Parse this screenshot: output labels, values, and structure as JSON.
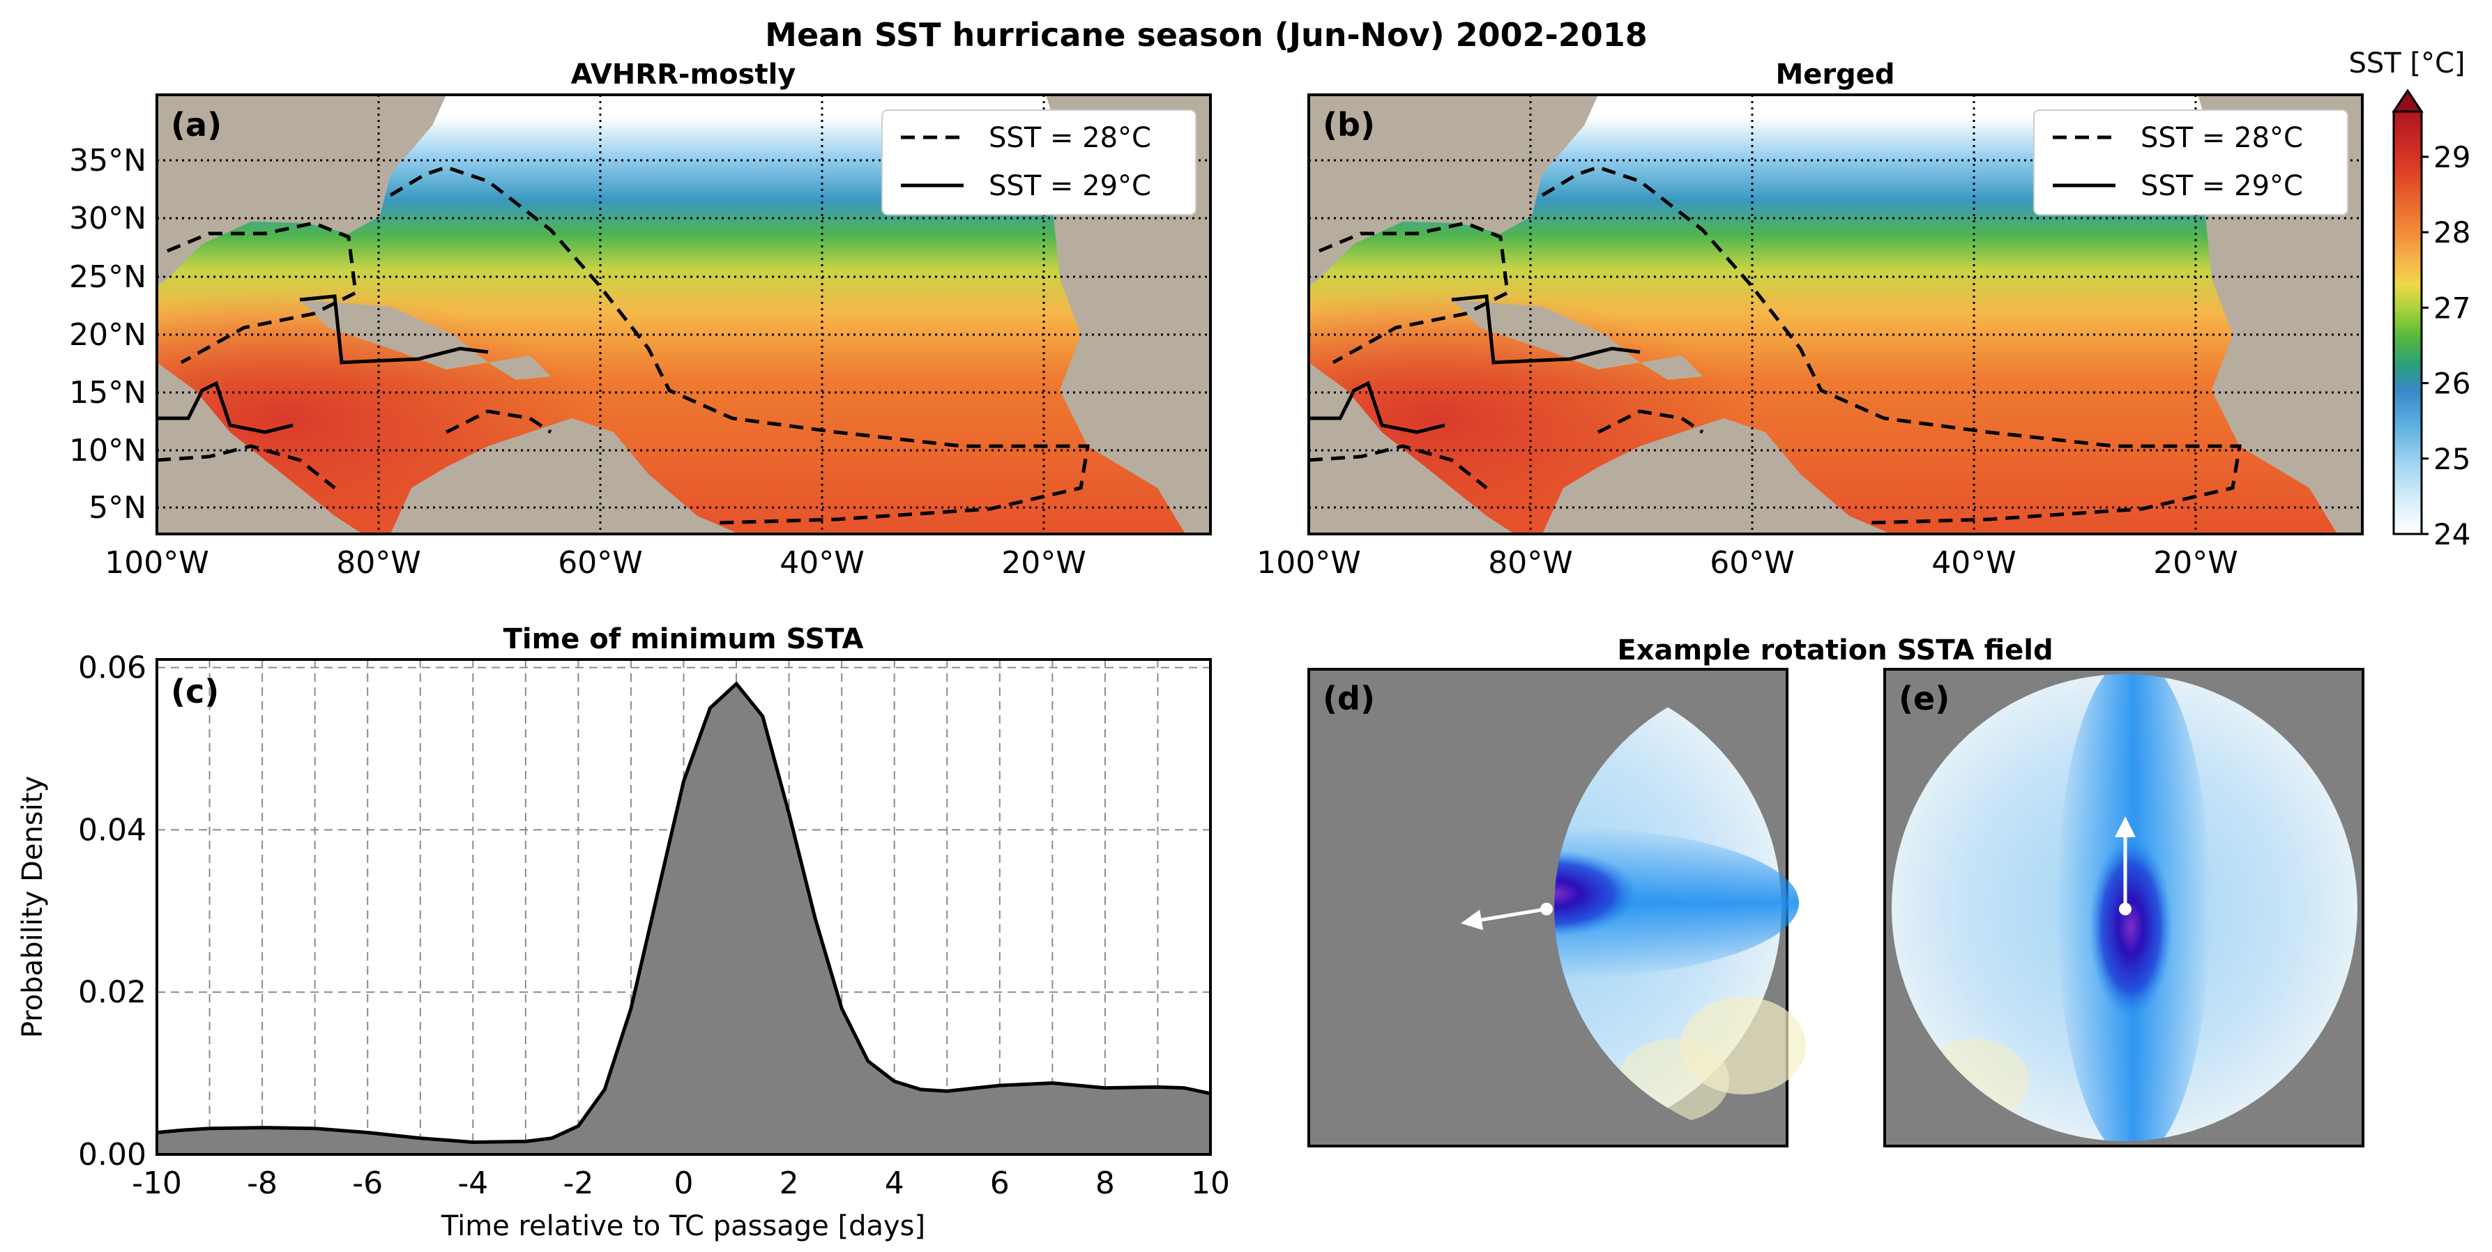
{
  "figure": {
    "title": "Mean SST hurricane season (Jun-Nov) 2002-2018"
  },
  "colorbar": {
    "label": "SST [°C]",
    "min": 24,
    "max": 29.6,
    "ticks": [
      "24",
      "25",
      "26",
      "27",
      "28",
      "29"
    ],
    "colors": [
      "#ffffff",
      "#d7eefa",
      "#9fd3f0",
      "#5aaee0",
      "#3b88c8",
      "#2f7fb0",
      "#2aa07a",
      "#5aba3a",
      "#a7d13c",
      "#f0d84a",
      "#f7b24a",
      "#f38d3a",
      "#ea6a2e",
      "#df4526",
      "#cc2b24",
      "#b0161f",
      "#8f0c18"
    ]
  },
  "chart_data": [
    {
      "panel": "(a)",
      "type": "heatmap",
      "title": "AVHRR-mostly",
      "variable": "Mean SST",
      "units": "°C",
      "lon_range": [
        -100,
        -5
      ],
      "lat_range": [
        2,
        40
      ],
      "x_ticks": [
        "100°W",
        "80°W",
        "60°W",
        "40°W",
        "20°W"
      ],
      "y_ticks": [
        "5°N",
        "10°N",
        "15°N",
        "20°N",
        "25°N",
        "30°N",
        "35°N"
      ],
      "grid": true,
      "legend": {
        "location": "upper-right",
        "entries": [
          "SST = 28°C",
          "SST = 29°C"
        ]
      }
    },
    {
      "panel": "(b)",
      "type": "heatmap",
      "title": "Merged",
      "variable": "Mean SST",
      "units": "°C",
      "lon_range": [
        -100,
        -5
      ],
      "lat_range": [
        2,
        40
      ],
      "x_ticks": [
        "100°W",
        "80°W",
        "60°W",
        "40°W",
        "20°W"
      ],
      "grid": true,
      "legend": {
        "location": "upper-right",
        "entries": [
          "SST = 28°C",
          "SST = 29°C"
        ]
      }
    },
    {
      "panel": "(c)",
      "type": "area",
      "title": "Time of minimum SSTA",
      "xlabel": "Time relative to TC passage [days]",
      "ylabel": "Probability Density",
      "xlim": [
        -10,
        10
      ],
      "ylim": [
        0,
        0.061
      ],
      "x_ticks": [
        "-10",
        "-8",
        "-6",
        "-4",
        "-2",
        "0",
        "2",
        "4",
        "6",
        "8",
        "10"
      ],
      "y_ticks": [
        "0.00",
        "0.02",
        "0.04",
        "0.06"
      ],
      "x": [
        -10,
        -9.5,
        -9,
        -8,
        -7,
        -6,
        -5,
        -4,
        -3,
        -2.5,
        -2,
        -1.5,
        -1,
        -0.5,
        0,
        0.5,
        1,
        1.5,
        2,
        2.5,
        3,
        3.5,
        4,
        4.5,
        5,
        6,
        7,
        8,
        9,
        9.5,
        10
      ],
      "y": [
        0.0027,
        0.003,
        0.0032,
        0.0033,
        0.0032,
        0.0027,
        0.002,
        0.0015,
        0.0016,
        0.002,
        0.0035,
        0.008,
        0.018,
        0.032,
        0.046,
        0.055,
        0.058,
        0.054,
        0.042,
        0.029,
        0.018,
        0.0115,
        0.009,
        0.008,
        0.0078,
        0.0085,
        0.0088,
        0.0082,
        0.0083,
        0.0082,
        0.0075
      ]
    },
    {
      "panel": "(d)",
      "type": "heatmap",
      "title": "Example rotation SSTA field",
      "arrow_direction": "left",
      "variable": "SSTA"
    },
    {
      "panel": "(e)",
      "type": "heatmap",
      "arrow_direction": "up",
      "variable": "SSTA"
    }
  ]
}
